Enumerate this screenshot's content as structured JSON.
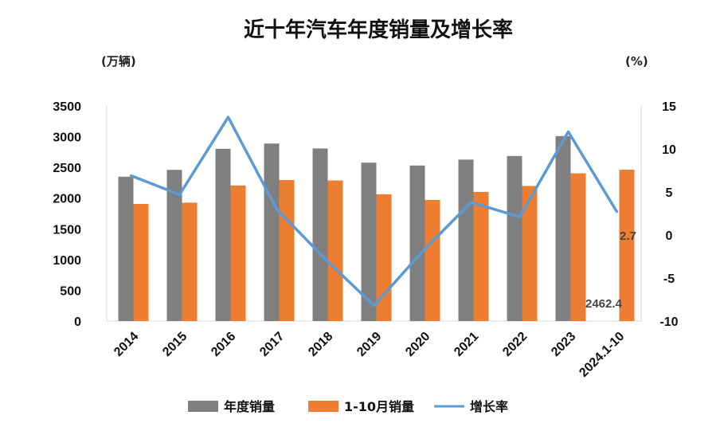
{
  "chart_data": {
    "type": "bar+line",
    "title": "近十年汽车年度销量及增长率",
    "ylabel_left": "(万辆)",
    "ylabel_right": "(%)",
    "categories": [
      "2014",
      "2015",
      "2016",
      "2017",
      "2018",
      "2019",
      "2020",
      "2021",
      "2022",
      "2023",
      "2024.1-10"
    ],
    "y_left_ticks": [
      "0",
      "500",
      "1000",
      "1500",
      "2000",
      "2500",
      "3000",
      "3500"
    ],
    "y_left_range": [
      0,
      3500
    ],
    "y_right_ticks": [
      "-10",
      "-5",
      "0",
      "5",
      "10",
      "15"
    ],
    "y_right_range": [
      -10,
      15
    ],
    "series": [
      {
        "name": "年度销量",
        "type": "bar",
        "axis": "left",
        "color": "#7f7f7f",
        "values": [
          2349,
          2460,
          2803,
          2888,
          2808,
          2577,
          2531,
          2627,
          2686,
          3009,
          null
        ]
      },
      {
        "name": "1-10月销量",
        "type": "bar",
        "axis": "left",
        "color": "#ed7d31",
        "values": [
          1906,
          1927,
          2206,
          2295,
          2288,
          2063,
          1970,
          2101,
          2198,
          2404,
          2462.4
        ]
      },
      {
        "name": "增长率",
        "type": "line",
        "axis": "right",
        "color": "#5b9bd5",
        "values": [
          6.9,
          4.7,
          13.7,
          3.0,
          -2.8,
          -8.2,
          -1.9,
          3.8,
          2.1,
          12.0,
          2.7
        ]
      }
    ],
    "data_labels": {
      "growth_last": "2.7",
      "sales_last": "2462.4"
    },
    "legend_position": "bottom",
    "grid": false
  }
}
